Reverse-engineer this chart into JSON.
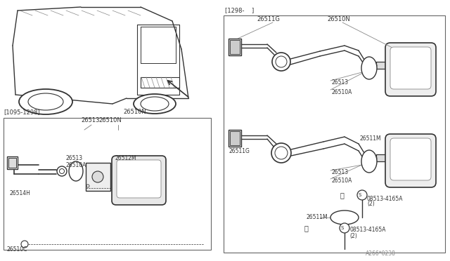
{
  "bg_color": "#ffffff",
  "line_color": "#888888",
  "dark_line": "#333333",
  "box_line": "#666666",
  "watermark": "A266*0238",
  "parts": {
    "26510N": "26510N",
    "26511G": "26511G",
    "26513": "26513",
    "26510A": "26510A",
    "26511M": "26511M",
    "26512M": "26512M",
    "26514H": "26514H",
    "26510C": "26510C",
    "08513-4165A": "08513-4165A"
  },
  "date_labels": {
    "left_box": "[1095-1298]",
    "right_top": "[1298-    ]"
  },
  "fig_width": 6.4,
  "fig_height": 3.72,
  "dpi": 100
}
